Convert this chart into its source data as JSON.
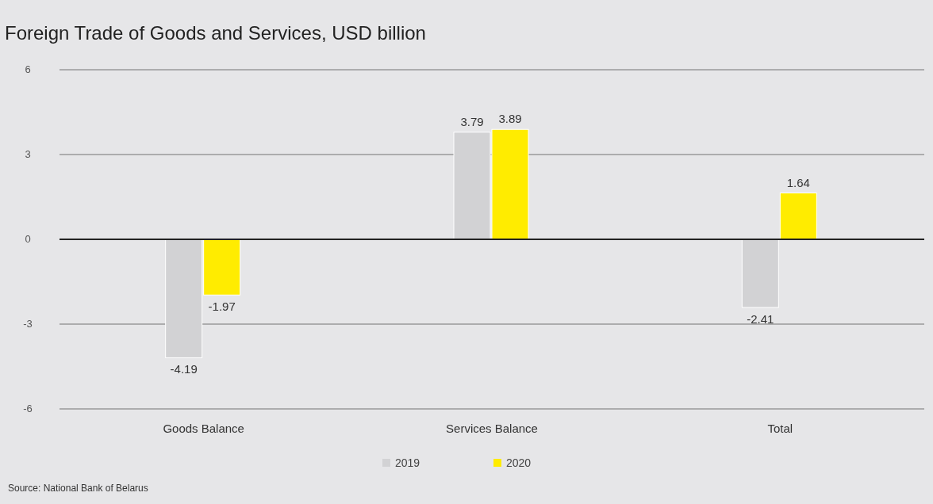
{
  "chart_data": {
    "type": "bar",
    "title": "Foreign Trade of Goods and Services, USD billion",
    "categories": [
      "Goods Balance",
      "Services Balance",
      "Total"
    ],
    "series": [
      {
        "name": "2019",
        "color": "#d2d2d4",
        "values": [
          -4.19,
          3.79,
          -2.41
        ]
      },
      {
        "name": "2020",
        "color": "#ffec00",
        "values": [
          -1.97,
          3.89,
          1.64
        ]
      }
    ],
    "ylim": [
      -6,
      6
    ],
    "yticks": [
      -6,
      -3,
      0,
      3,
      6
    ],
    "grid": "y",
    "legend": "bottom",
    "data_labels": true,
    "annotations": [
      "Source: National Bank of Belarus"
    ]
  }
}
